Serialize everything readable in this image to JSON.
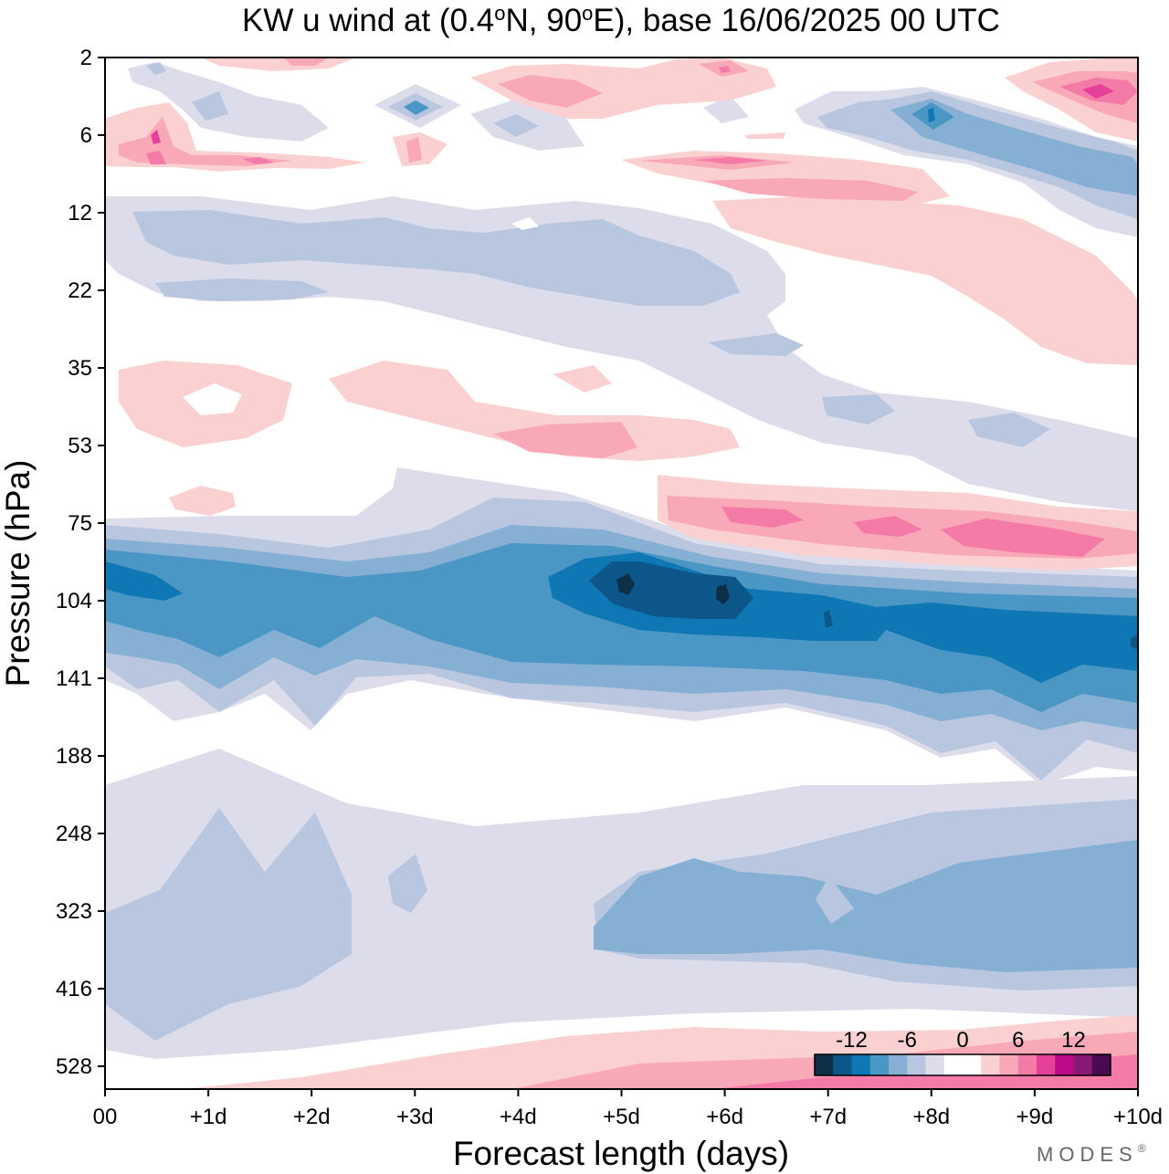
{
  "chart_data": {
    "type": "heatmap",
    "title_parts": {
      "prefix": "KW u wind at (0.4",
      "deg1": "o",
      "mid": "N, 90",
      "deg2": "o",
      "suffix": "E),  base 16/06/2025  00 UTC"
    },
    "xlabel": "Forecast length (days)",
    "ylabel": "Pressure (hPa)",
    "x_ticks": [
      "00",
      "+1d",
      "+2d",
      "+3d",
      "+4d",
      "+5d",
      "+6d",
      "+7d",
      "+8d",
      "+9d",
      "+10d"
    ],
    "y_ticks": [
      "2",
      "6",
      "12",
      "22",
      "35",
      "53",
      "75",
      "104",
      "141",
      "188",
      "248",
      "323",
      "416",
      "528"
    ],
    "xlim": [
      0,
      10
    ],
    "colorbar": {
      "tick_labels": [
        "-12",
        "-6",
        "0",
        "6",
        "12"
      ],
      "tick_values": [
        -12,
        -6,
        0,
        6,
        12
      ],
      "range": [
        -16,
        16
      ],
      "colors": [
        "#0d2f48",
        "#0c5689",
        "#0f77b4",
        "#4a96c4",
        "#86b0d3",
        "#b9c6df",
        "#dcdcea",
        "#ffffff",
        "#ffffff",
        "#fbd0d0",
        "#f9a8b8",
        "#f47ba8",
        "#e5409a",
        "#bb0a88",
        "#881874",
        "#4a0a50"
      ]
    },
    "features": [
      {
        "name": "easterly-jet-core",
        "value": -14,
        "x": [
          1,
          10
        ],
        "p": [
          90,
          141
        ],
        "peak_day": 5.2
      },
      {
        "name": "upper-troposphere-easterlies",
        "value": -6,
        "x": [
          0,
          10
        ],
        "p": [
          248,
          450
        ]
      },
      {
        "name": "lower-stratosphere-westerlies",
        "value": 8,
        "x": [
          5.5,
          10
        ],
        "p": [
          60,
          90
        ]
      },
      {
        "name": "mid-stratosphere-westerlies",
        "value": 4,
        "x": [
          0,
          6
        ],
        "p": [
          35,
          60
        ]
      },
      {
        "name": "lower-troposphere-westerlies",
        "value": 4,
        "x": [
          2,
          10
        ],
        "p": [
          500,
          600
        ]
      },
      {
        "name": "upper-stratosphere-westerlies",
        "value": 9,
        "x": [
          8,
          10
        ],
        "p": [
          2,
          6
        ]
      }
    ]
  },
  "branding": "MODES",
  "branding_mark": "®"
}
